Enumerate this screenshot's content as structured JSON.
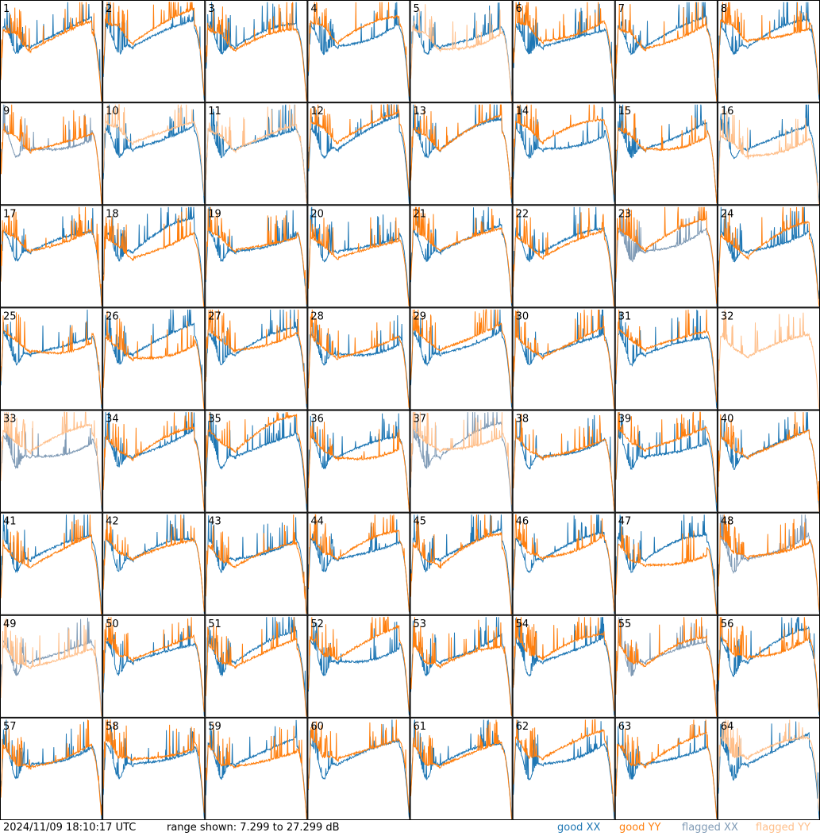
{
  "chart_data": {
    "type": "line",
    "panels": 64,
    "columns": 8,
    "rows": 8,
    "panel_labels": [
      "1",
      "2",
      "3",
      "4",
      "5",
      "6",
      "7",
      "8",
      "9",
      "10",
      "11",
      "12",
      "13",
      "14",
      "15",
      "16",
      "17",
      "18",
      "19",
      "20",
      "21",
      "22",
      "23",
      "24",
      "25",
      "26",
      "27",
      "28",
      "29",
      "30",
      "31",
      "32",
      "33",
      "34",
      "35",
      "36",
      "37",
      "38",
      "39",
      "40",
      "41",
      "42",
      "43",
      "44",
      "45",
      "46",
      "47",
      "48",
      "49",
      "50",
      "51",
      "52",
      "53",
      "54",
      "55",
      "56",
      "57",
      "58",
      "59",
      "60",
      "61",
      "62",
      "63",
      "64"
    ],
    "y_range_db": [
      7.299,
      27.299
    ],
    "legend_placement": "bottom-right",
    "series": [
      {
        "name": "good XX",
        "color": "#1f77b4"
      },
      {
        "name": "good YY",
        "color": "#ff7f0e"
      },
      {
        "name": "flagged XX",
        "color": "#7f9ab5"
      },
      {
        "name": "flagged YY",
        "color": "#ffbf8a"
      }
    ],
    "panel_states": {
      "flagged_xx": [
        "9",
        "23",
        "33",
        "37",
        "48",
        "49",
        "55"
      ],
      "flagged_yy": [
        "5",
        "10",
        "11",
        "16",
        "32",
        "33",
        "37",
        "49",
        "64"
      ],
      "absent_yy": [],
      "absent_xx": [
        "32"
      ]
    }
  },
  "footer": {
    "timestamp": "2024/11/09 18:10:17 UTC",
    "range_text": "range shown: 7.299 to 27.299 dB"
  },
  "legend": {
    "good_xx": "good XX",
    "good_yy": "good YY",
    "flagged_xx": "flagged XX",
    "flagged_yy": "flagged YY"
  },
  "colors": {
    "good_xx": "#1f77b4",
    "good_yy": "#ff7f0e",
    "flagged_xx": "#7f9ab5",
    "flagged_yy": "#ffbf8a",
    "frame": "#000000"
  }
}
